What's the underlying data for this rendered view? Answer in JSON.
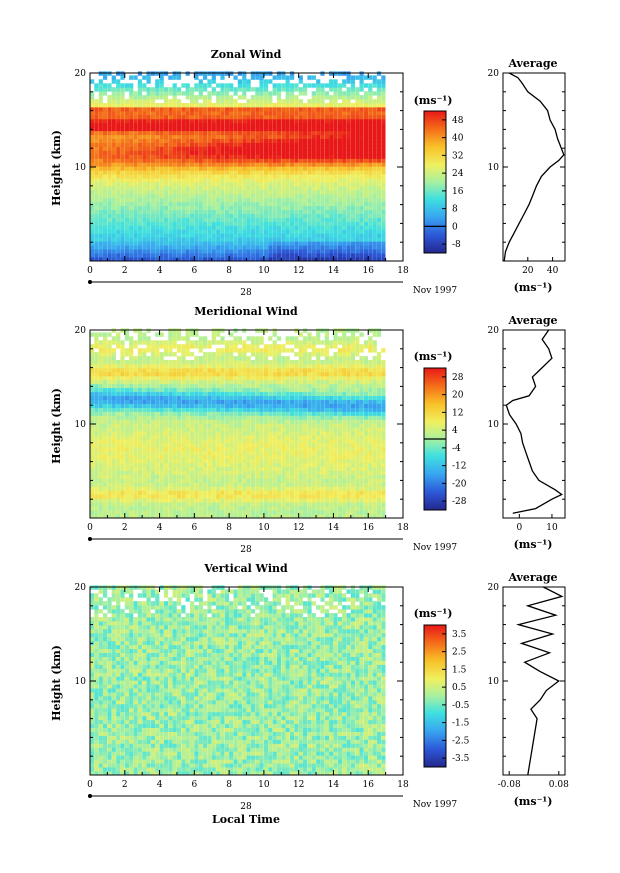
{
  "figure": {
    "x_axis_label": "Local Time",
    "date_label": "Nov 1997",
    "day_label": "28",
    "x_ticks": [
      "0",
      "2",
      "4",
      "6",
      "8",
      "10",
      "12",
      "14",
      "16",
      "18"
    ],
    "y_ticks": [
      "10",
      "20"
    ],
    "y_axis_label": "Height (km)",
    "units_label": "(ms⁻¹)",
    "average_title": "Average"
  },
  "chart_data": [
    {
      "type": "heatmap",
      "title": "Zonal Wind",
      "ylabel": "Height (km)",
      "xlabel": "",
      "xlim": [
        0,
        18
      ],
      "ylim": [
        0,
        20
      ],
      "data_x_extent": [
        0,
        17
      ],
      "colorbar": {
        "ticks": [
          "48",
          "40",
          "32",
          "24",
          "16",
          "8",
          "0",
          "-8"
        ],
        "range": [
          -12,
          52
        ],
        "zero_line": 0
      },
      "profile": {
        "title": "Average",
        "xticks": [
          "20",
          "40"
        ],
        "xlim": [
          0,
          50
        ],
        "ylim": [
          0,
          20
        ],
        "points": [
          [
            1,
            0
          ],
          [
            2,
            1
          ],
          [
            5,
            2
          ],
          [
            9,
            3
          ],
          [
            13,
            4
          ],
          [
            17,
            5
          ],
          [
            21,
            6
          ],
          [
            24,
            7
          ],
          [
            27,
            8
          ],
          [
            31,
            9
          ],
          [
            38,
            10
          ],
          [
            45,
            10.7
          ],
          [
            49,
            11.3
          ],
          [
            47,
            12
          ],
          [
            44,
            13
          ],
          [
            42,
            14
          ],
          [
            38,
            15
          ],
          [
            36,
            16
          ],
          [
            30,
            17
          ],
          [
            20,
            18
          ],
          [
            15,
            19
          ],
          [
            12,
            19.5
          ],
          [
            5,
            20
          ]
        ]
      }
    },
    {
      "type": "heatmap",
      "title": "Meridional Wind",
      "ylabel": "Height (km)",
      "xlabel": "",
      "xlim": [
        0,
        18
      ],
      "ylim": [
        0,
        20
      ],
      "data_x_extent": [
        0,
        17
      ],
      "colorbar": {
        "ticks": [
          "28",
          "20",
          "12",
          "4",
          "-4",
          "-12",
          "-20",
          "-28"
        ],
        "range": [
          -32,
          32
        ],
        "zero_line": 0
      },
      "profile": {
        "title": "Average",
        "xticks": [
          "0",
          "10"
        ],
        "xlim": [
          -5,
          14
        ],
        "ylim": [
          0,
          20
        ],
        "points": [
          [
            -2,
            0.5
          ],
          [
            5,
            1
          ],
          [
            10,
            2
          ],
          [
            13,
            2.5
          ],
          [
            11,
            3
          ],
          [
            6,
            4
          ],
          [
            4,
            5
          ],
          [
            3,
            6
          ],
          [
            2,
            7
          ],
          [
            1,
            8
          ],
          [
            0.5,
            9
          ],
          [
            -1,
            10
          ],
          [
            -3,
            11
          ],
          [
            -4,
            12
          ],
          [
            -2,
            12.5
          ],
          [
            3,
            13
          ],
          [
            5,
            14
          ],
          [
            4,
            15
          ],
          [
            7,
            16
          ],
          [
            10,
            17
          ],
          [
            9,
            18
          ],
          [
            7,
            19
          ],
          [
            9,
            20
          ]
        ]
      }
    },
    {
      "type": "heatmap",
      "title": "Vertical Wind",
      "ylabel": "Height (km)",
      "xlabel": "Local Time",
      "xlim": [
        0,
        18
      ],
      "ylim": [
        0,
        20
      ],
      "data_x_extent": [
        0,
        17
      ],
      "colorbar": {
        "ticks": [
          "3.5",
          "2.5",
          "1.5",
          "0.5",
          "-0.5",
          "-1.5",
          "-2.5",
          "-3.5"
        ],
        "range": [
          -4,
          4
        ]
      },
      "profile": {
        "title": "Average",
        "xticks": [
          "-0.08",
          "0.08"
        ],
        "xlim": [
          -0.1,
          0.1
        ],
        "ylim": [
          0,
          20
        ],
        "points": [
          [
            -0.02,
            0
          ],
          [
            -0.01,
            2
          ],
          [
            0.0,
            4
          ],
          [
            0.01,
            6
          ],
          [
            -0.01,
            7
          ],
          [
            0.02,
            8
          ],
          [
            0.04,
            9
          ],
          [
            0.08,
            10
          ],
          [
            0.02,
            11
          ],
          [
            -0.03,
            12
          ],
          [
            0.05,
            13
          ],
          [
            -0.04,
            14
          ],
          [
            0.06,
            15
          ],
          [
            -0.05,
            16
          ],
          [
            0.07,
            17
          ],
          [
            -0.02,
            18
          ],
          [
            0.09,
            19
          ],
          [
            0.03,
            20
          ]
        ]
      }
    }
  ]
}
